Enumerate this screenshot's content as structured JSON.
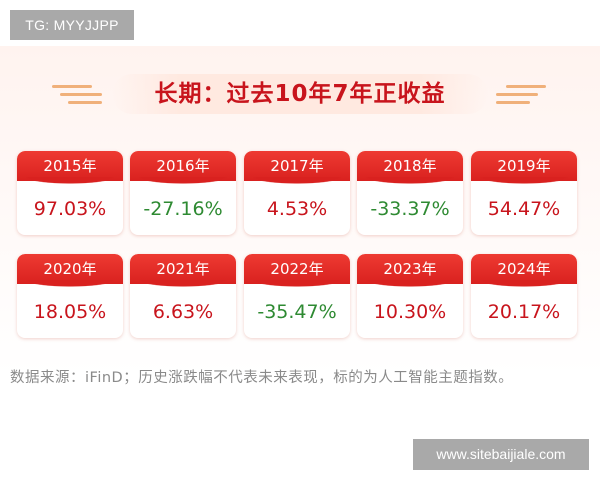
{
  "watermark_top": "TG: MYYJJPP",
  "watermark_bottom": "www.sitebaijiale.com",
  "title": "长期：过去10年7年正收益",
  "cards": [
    {
      "year": "2015年",
      "value": "97.03%",
      "sign": "pos"
    },
    {
      "year": "2016年",
      "value": "-27.16%",
      "sign": "neg"
    },
    {
      "year": "2017年",
      "value": "4.53%",
      "sign": "pos"
    },
    {
      "year": "2018年",
      "value": "-33.37%",
      "sign": "neg"
    },
    {
      "year": "2019年",
      "value": "54.47%",
      "sign": "pos"
    },
    {
      "year": "2020年",
      "value": "18.05%",
      "sign": "pos"
    },
    {
      "year": "2021年",
      "value": "6.63%",
      "sign": "pos"
    },
    {
      "year": "2022年",
      "value": "-35.47%",
      "sign": "neg"
    },
    {
      "year": "2023年",
      "value": "10.30%",
      "sign": "pos"
    },
    {
      "year": "2024年",
      "value": "20.17%",
      "sign": "pos"
    }
  ],
  "footnote": "数据来源：iFinD；历史涨跌幅不代表未来表现，标的为人工智能主题指数。",
  "colors": {
    "title_red": "#c8141c",
    "header_red": "#e32d27",
    "positive_red": "#c8141c",
    "negative_green": "#2e8a32",
    "footnote_gray": "#8a8a8a"
  }
}
